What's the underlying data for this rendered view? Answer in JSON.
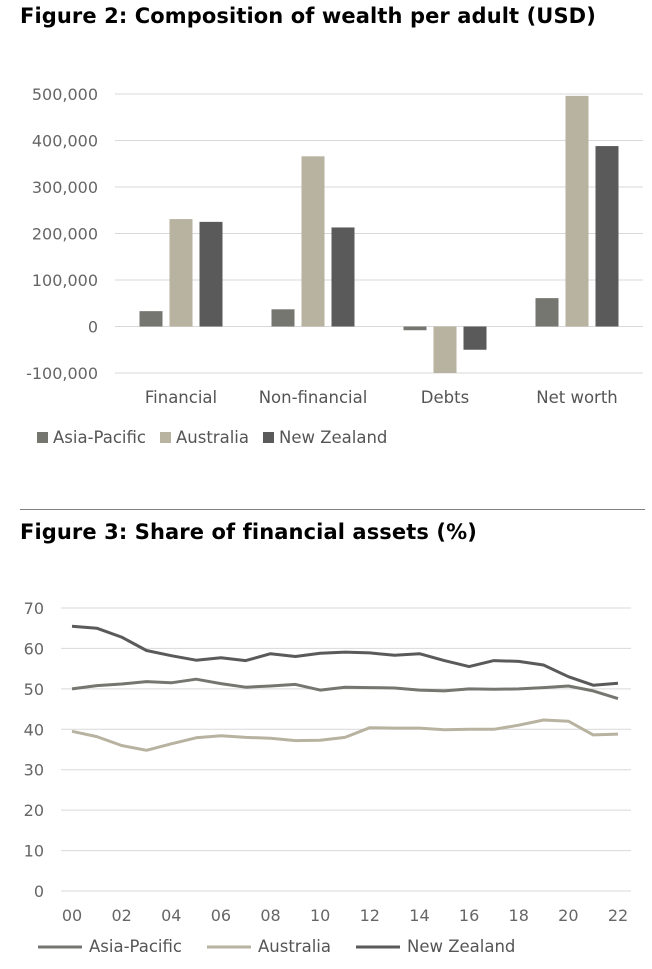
{
  "figure2": {
    "title": "Figure 2: Composition of wealth per adult (USD)",
    "chart_data": {
      "type": "bar",
      "title": "Figure 2: Composition of wealth per adult (USD)",
      "categories": [
        "Financial",
        "Non-financial",
        "Debts",
        "Net worth"
      ],
      "series": [
        {
          "name": "Asia-Pacific",
          "color": "#767670",
          "values": [
            33000,
            37000,
            -8000,
            61000
          ]
        },
        {
          "name": "Australia",
          "color": "#b8b2a0",
          "values": [
            231000,
            366000,
            -100000,
            496000
          ]
        },
        {
          "name": "New Zealand",
          "color": "#5a5a5a",
          "values": [
            225000,
            213000,
            -50000,
            388000
          ]
        }
      ],
      "yticks": [
        -100000,
        0,
        100000,
        200000,
        300000,
        400000,
        500000
      ],
      "ytick_labels": [
        "-100,000",
        "0",
        "100,000",
        "200,000",
        "300,000",
        "400,000",
        "500,000"
      ],
      "ylim": [
        -100000,
        500000
      ],
      "xlabel": "",
      "ylabel": "",
      "legend_position": "bottom-left",
      "grid": true
    }
  },
  "figure3": {
    "title": "Figure 3: Share of financial assets (%)",
    "chart_data": {
      "type": "line",
      "title": "Figure 3: Share of financial assets (%)",
      "x": [
        2000,
        2001,
        2002,
        2003,
        2004,
        2005,
        2006,
        2007,
        2008,
        2009,
        2010,
        2011,
        2012,
        2013,
        2014,
        2015,
        2016,
        2017,
        2018,
        2019,
        2020,
        2021,
        2022
      ],
      "xtick_values": [
        2000,
        2002,
        2004,
        2006,
        2008,
        2010,
        2012,
        2014,
        2016,
        2018,
        2020,
        2022
      ],
      "xtick_labels": [
        "00",
        "02",
        "04",
        "06",
        "08",
        "10",
        "12",
        "14",
        "16",
        "18",
        "20",
        "22"
      ],
      "series": [
        {
          "name": "Asia-Pacific",
          "color": "#767670",
          "values": [
            50.0,
            50.8,
            51.2,
            51.8,
            51.5,
            52.4,
            51.3,
            50.4,
            50.7,
            51.1,
            49.7,
            50.4,
            50.3,
            50.2,
            49.7,
            49.5,
            50.0,
            49.9,
            50.0,
            50.3,
            50.7,
            49.5,
            47.6
          ]
        },
        {
          "name": "Australia",
          "color": "#b8b2a0",
          "values": [
            39.5,
            38.2,
            36.0,
            34.8,
            36.4,
            37.9,
            38.4,
            38.0,
            37.8,
            37.2,
            37.3,
            38.0,
            40.4,
            40.3,
            40.3,
            39.9,
            40.0,
            40.0,
            41.0,
            42.3,
            42.0,
            38.6,
            38.8
          ]
        },
        {
          "name": "New Zealand",
          "color": "#5a5a5a",
          "values": [
            65.5,
            65.0,
            62.8,
            59.5,
            58.2,
            57.1,
            57.7,
            57.0,
            58.7,
            58.0,
            58.8,
            59.1,
            58.9,
            58.3,
            58.7,
            57.0,
            55.5,
            57.0,
            56.8,
            55.9,
            53.0,
            50.9,
            51.4
          ]
        }
      ],
      "yticks": [
        0,
        10,
        20,
        30,
        40,
        50,
        60,
        70
      ],
      "ytick_labels": [
        "0",
        "10",
        "20",
        "30",
        "40",
        "50",
        "60",
        "70"
      ],
      "ylim": [
        0,
        70
      ],
      "xlabel": "",
      "ylabel": "",
      "legend_position": "bottom",
      "grid": true
    }
  }
}
